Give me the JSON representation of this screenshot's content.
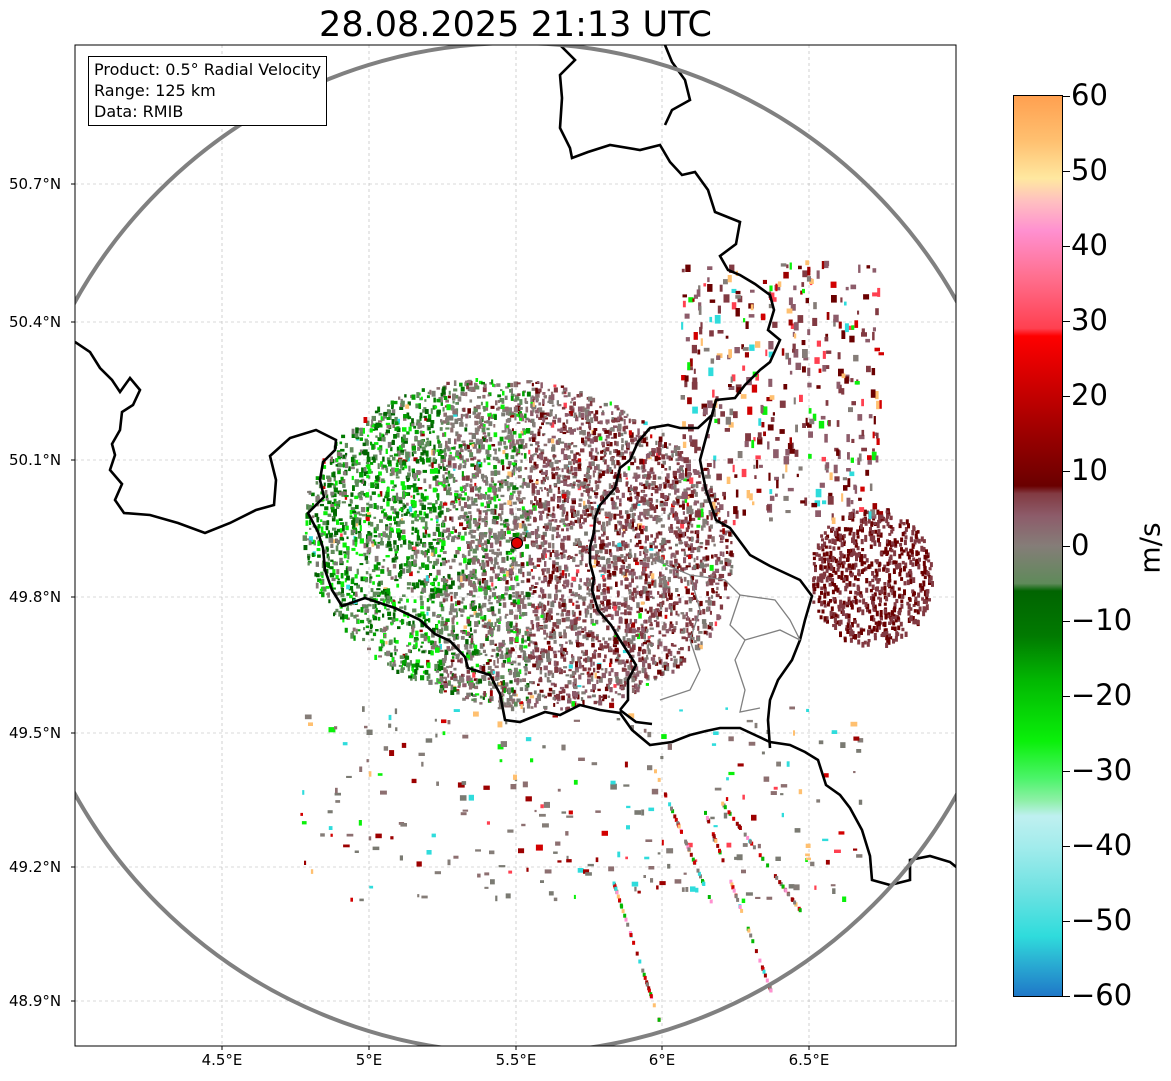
{
  "title": "28.08.2025 21:13 UTC",
  "info": {
    "product": "Product: 0.5° Radial Velocity",
    "range": "Range: 125 km",
    "data": "Data: RMIB"
  },
  "lat_labels": [
    "50.7°N",
    "50.4°N",
    "50.1°N",
    "49.8°N",
    "49.5°N",
    "49.2°N",
    "48.9°N"
  ],
  "lon_labels": [
    "4.5°E",
    "5°E",
    "5.5°E",
    "6°E",
    "6.5°E"
  ],
  "colorbar": {
    "unit": "m/s",
    "min": -60,
    "max": 60,
    "ticks": [
      "60",
      "50",
      "40",
      "30",
      "20",
      "10",
      "0",
      "−10",
      "−20",
      "−30",
      "−40",
      "−50",
      "−60"
    ],
    "stops": [
      {
        "v": -60,
        "c": "#1f78c8"
      },
      {
        "v": -55,
        "c": "#2bb5d4"
      },
      {
        "v": -52,
        "c": "#2fdcdc"
      },
      {
        "v": -46,
        "c": "#6ee2e2"
      },
      {
        "v": -40,
        "c": "#a3ecec"
      },
      {
        "v": -36,
        "c": "#bff0f0"
      },
      {
        "v": -34,
        "c": "#8ff0a8"
      },
      {
        "v": -31,
        "c": "#4cf46a"
      },
      {
        "v": -26,
        "c": "#0af00a"
      },
      {
        "v": -18,
        "c": "#02b802"
      },
      {
        "v": -12,
        "c": "#017a01"
      },
      {
        "v": -6,
        "c": "#016401"
      },
      {
        "v": -5,
        "c": "#5f8a5a"
      },
      {
        "v": 0,
        "c": "#857d78"
      },
      {
        "v": 4,
        "c": "#8d5c6a"
      },
      {
        "v": 7,
        "c": "#823a42"
      },
      {
        "v": 8,
        "c": "#6a0000"
      },
      {
        "v": 15,
        "c": "#9c0000"
      },
      {
        "v": 22,
        "c": "#d20000"
      },
      {
        "v": 28,
        "c": "#ff0000"
      },
      {
        "v": 29,
        "c": "#ff4050"
      },
      {
        "v": 36,
        "c": "#ff7090"
      },
      {
        "v": 42,
        "c": "#ff90d0"
      },
      {
        "v": 46,
        "c": "#ffc0c0"
      },
      {
        "v": 49,
        "c": "#ffe8a0"
      },
      {
        "v": 54,
        "c": "#ffc070"
      },
      {
        "v": 60,
        "c": "#ffa050"
      }
    ]
  },
  "radar": {
    "lon": 5.505,
    "lat": 49.914,
    "marker_color": "#e00000"
  },
  "colors": {
    "range_ring": "#808080",
    "border": "#000000",
    "inner_border": "#808080",
    "grid": "#b4b4b4"
  },
  "features": [
    {
      "kind": "receding-area",
      "dominant": "#823a42"
    },
    {
      "kind": "approaching-area",
      "dominant": "#017a01"
    }
  ]
}
